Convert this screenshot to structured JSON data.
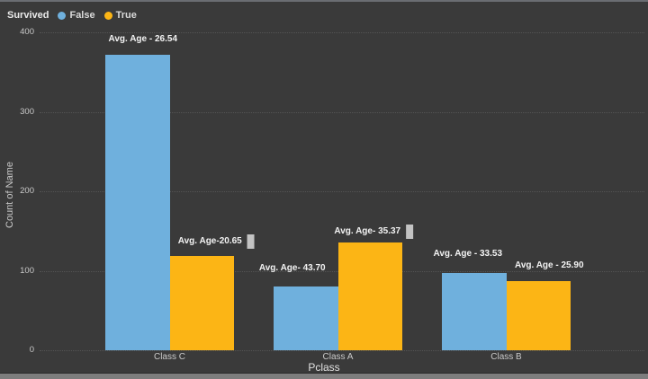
{
  "legend": {
    "title": "Survived",
    "items": [
      {
        "label": "False",
        "color": "#6fb0dd"
      },
      {
        "label": "True",
        "color": "#fcb515"
      }
    ]
  },
  "chart_data": {
    "type": "bar",
    "title": "",
    "xlabel": "Pclass",
    "ylabel": "Count of Name",
    "categories": [
      "Class C",
      "Class A",
      "Class B"
    ],
    "series": [
      {
        "name": "False",
        "color": "#6fb0dd",
        "values": [
          372,
          80,
          97
        ],
        "bar_labels": [
          "Avg. Age - 26.54",
          "Avg. Age- 43.70",
          "Avg. Age - 33.53"
        ],
        "label_markers": [
          false,
          false,
          false
        ]
      },
      {
        "name": "True",
        "color": "#fcb515",
        "values": [
          119,
          136,
          87
        ],
        "bar_labels": [
          "Avg. Age-20.65",
          "Avg. Age- 35.37",
          "Avg. Age - 25.90"
        ],
        "label_markers": [
          true,
          true,
          false
        ]
      }
    ],
    "ylim": [
      0,
      400
    ],
    "y_ticks": [
      0,
      100,
      200,
      300,
      400
    ],
    "grid": "dotted-horizontal",
    "legend_position": "top-left",
    "marker_color": "#c3c3c3"
  }
}
